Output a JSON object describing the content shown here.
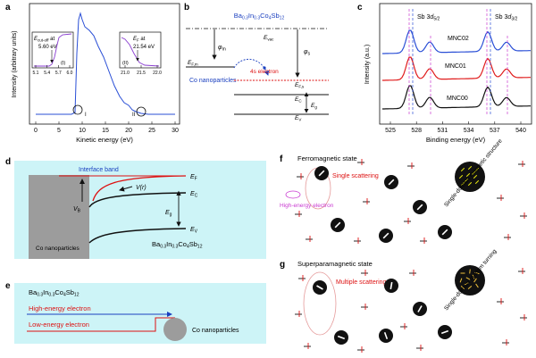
{
  "panel_letters": [
    "a",
    "b",
    "c",
    "d",
    "e",
    "f",
    "g"
  ],
  "panel_a": {
    "ylabel": "Intensity (arbitrary units)",
    "xlabel": "Kinetic energy (eV)",
    "xticks": [
      "0",
      "5",
      "10",
      "15",
      "20",
      "25",
      "30"
    ],
    "inset1": {
      "label": "E",
      "label_sub": "cut-off",
      "label_tail": " at",
      "value": "5.60 eV",
      "numeral": "(I)",
      "ticks": [
        "5.1",
        "5.4",
        "5.7",
        "6.0"
      ]
    },
    "inset2": {
      "label": "E",
      "label_sub": "F",
      "label_tail": " at",
      "value": "21.54 eV",
      "numeral": "(II)",
      "ticks": [
        "21.0",
        "21.5",
        "22.0"
      ]
    },
    "circle_labels": [
      "I",
      "II"
    ]
  },
  "panel_b": {
    "material": "Ba0.3In0.3Co4Sb12",
    "evac": "E",
    "evac_sub": "vac",
    "phi_m": "φ",
    "phi_m_sub": "m",
    "phi_s": "φ",
    "phi_s_sub": "s",
    "efm": "E",
    "efm_sub": "F,m",
    "efs": "E",
    "efs_sub": "F,s",
    "ec": "E",
    "ec_sub": "C",
    "ev": "E",
    "ev_sub": "V",
    "eg": "E",
    "eg_sub": "g",
    "electron_label": "4s electron",
    "metal_label": "Co nanoparticles"
  },
  "panel_c": {
    "ylabel": "Intensity (a.u.)",
    "xlabel": "Binding energy (eV)",
    "xticks": [
      "525",
      "528",
      "531",
      "534",
      "537",
      "540"
    ],
    "peak1": "Sb 3d5/2",
    "peak2": "Sb 3d3/2",
    "series": [
      "MNC02",
      "MNC01",
      "MNC00"
    ],
    "colors": [
      "#2a4fd6",
      "#e01b1b",
      "#111111"
    ]
  },
  "panel_d": {
    "interface": "Interface band",
    "ef": "E",
    "ef_sub": "F",
    "ec": "E",
    "ec_sub": "C",
    "ev": "E",
    "ev_sub": "V",
    "eg": "E",
    "eg_sub": "g",
    "vb": "V",
    "vb_sub": "B",
    "vr": "V(r)",
    "metal": "Co nanoparticles",
    "material": "Ba0.3In0.3Co4Sb12"
  },
  "panel_e": {
    "material": "Ba0.3In0.3Co4Sb12",
    "high": "High-energy electron",
    "low": "Low-energy electron",
    "particle": "Co nanoparticles"
  },
  "panel_f": {
    "title": "Ferromagnetic state",
    "scatter": "Single scattering",
    "electron": "High-energy electron",
    "domain": "Single-domain magnetic structure"
  },
  "panel_g": {
    "title": "Superparamagnetic state",
    "scatter": "Multiple scattering",
    "domain": "Single-domain random turning"
  }
}
